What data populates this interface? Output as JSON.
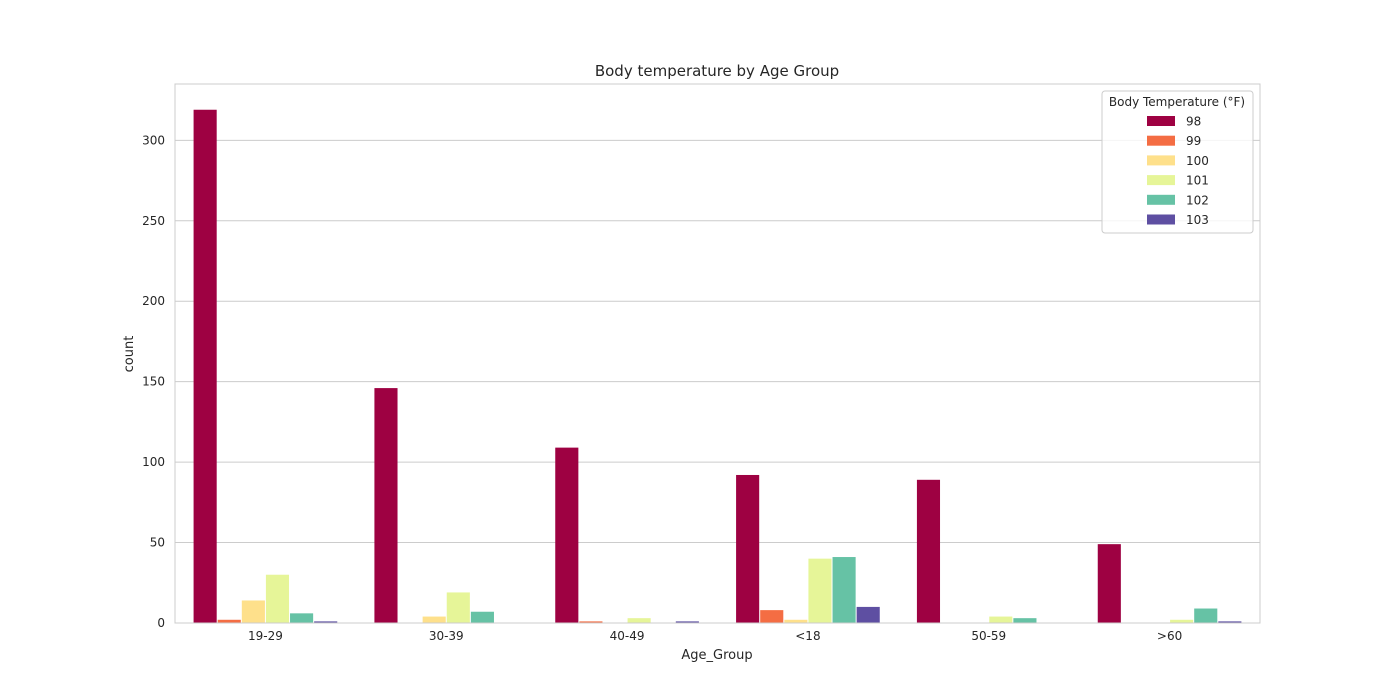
{
  "chart_data": {
    "type": "bar",
    "title": "Body temperature by Age Group",
    "xlabel": "Age_Group",
    "ylabel": "count",
    "ylim": [
      0,
      335
    ],
    "yticks": [
      0,
      50,
      100,
      150,
      200,
      250,
      300
    ],
    "categories": [
      "19-29",
      "30-39",
      "40-49",
      "<18",
      "50-59",
      ">60"
    ],
    "legend": {
      "title": "Body Temperature (°F)",
      "placement": "top-right"
    },
    "grid": true,
    "series": [
      {
        "name": "98",
        "color": "#9e0142",
        "values": [
          319,
          146,
          109,
          92,
          89,
          49
        ]
      },
      {
        "name": "99",
        "color": "#f46d43",
        "values": [
          2,
          0,
          1,
          8,
          0,
          0
        ]
      },
      {
        "name": "100",
        "color": "#fee08b",
        "values": [
          14,
          4,
          0,
          2,
          0,
          0
        ]
      },
      {
        "name": "101",
        "color": "#e6f598",
        "values": [
          30,
          19,
          3,
          40,
          4,
          2
        ]
      },
      {
        "name": "102",
        "color": "#66c2a5",
        "values": [
          6,
          7,
          0,
          41,
          3,
          9
        ]
      },
      {
        "name": "103",
        "color": "#5e4fa2",
        "values": [
          1,
          0,
          1,
          10,
          0,
          1
        ]
      }
    ]
  }
}
